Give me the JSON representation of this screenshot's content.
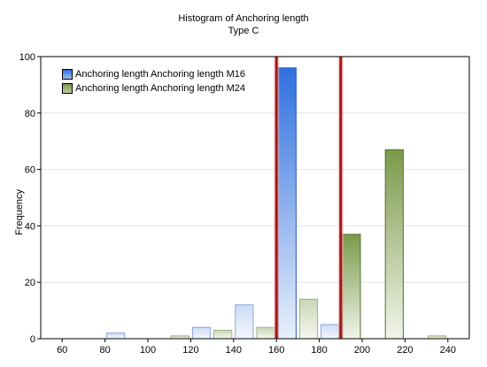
{
  "chart_data": {
    "type": "bar",
    "title": "Histogram of Anchoring length",
    "subtitle": "Type C",
    "xlabel": "",
    "ylabel": "Frequency",
    "xlim": [
      50,
      250
    ],
    "ylim": [
      0,
      100
    ],
    "x_ticks": [
      60,
      80,
      100,
      120,
      140,
      160,
      180,
      200,
      220,
      240
    ],
    "y_ticks": [
      0,
      20,
      40,
      60,
      80,
      100
    ],
    "bin_width": 10,
    "series": [
      {
        "name": "Anchoring length Anchoring length M16",
        "color": "#2f6fe0",
        "bins": [
          {
            "x": 85,
            "value": 2
          },
          {
            "x": 125,
            "value": 4
          },
          {
            "x": 145,
            "value": 12
          },
          {
            "x": 165,
            "value": 96
          },
          {
            "x": 185,
            "value": 5
          }
        ]
      },
      {
        "name": "Anchoring length Anchoring length M24",
        "color": "#7a9a4a",
        "bins": [
          {
            "x": 115,
            "value": 1
          },
          {
            "x": 135,
            "value": 3
          },
          {
            "x": 155,
            "value": 4
          },
          {
            "x": 175,
            "value": 14
          },
          {
            "x": 195,
            "value": 37
          },
          {
            "x": 215,
            "value": 67
          },
          {
            "x": 235,
            "value": 1
          }
        ]
      }
    ],
    "reference_lines": [
      {
        "x": 160,
        "color": "#a01818"
      },
      {
        "x": 190,
        "color": "#a01818"
      }
    ],
    "grid": true,
    "legend_position": "top-left"
  }
}
